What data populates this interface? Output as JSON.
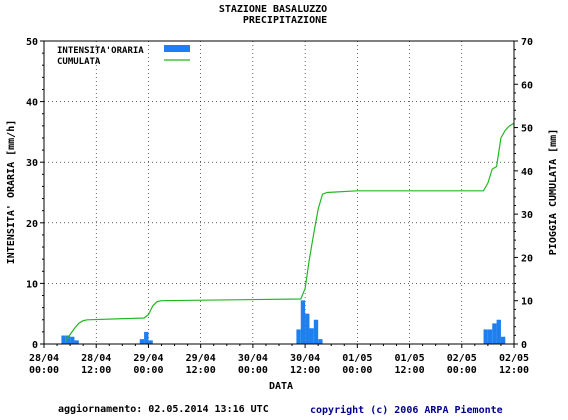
{
  "chart_data": {
    "type": "bar",
    "title": "STAZIONE BASALUZZO",
    "subtitle": "PRECIPITAZIONE",
    "xlabel": "DATA",
    "ylabel_left": "INTENSITA' ORARIA [mm/h]",
    "ylabel_right": "PIOGGIA CUMULATA [mm]",
    "ylim_left": [
      0,
      50
    ],
    "ylim_right": [
      0,
      70
    ],
    "yticks_left": [
      "0",
      "10",
      "20",
      "30",
      "40",
      "50"
    ],
    "yticks_right": [
      "0",
      "10",
      "20",
      "30",
      "40",
      "50",
      "60",
      "70"
    ],
    "x_range_hours": [
      0,
      108
    ],
    "x_ticks": [
      {
        "date": "28/04",
        "time": "00:00"
      },
      {
        "date": "28/04",
        "time": "12:00"
      },
      {
        "date": "29/04",
        "time": "00:00"
      },
      {
        "date": "29/04",
        "time": "12:00"
      },
      {
        "date": "30/04",
        "time": "00:00"
      },
      {
        "date": "30/04",
        "time": "12:00"
      },
      {
        "date": "01/05",
        "time": "00:00"
      },
      {
        "date": "01/05",
        "time": "12:00"
      },
      {
        "date": "02/05",
        "time": "00:00"
      },
      {
        "date": "02/05",
        "time": "12:00"
      }
    ],
    "grid": true,
    "legend_position": "top-left",
    "series": [
      {
        "name": "INTENSITA'ORARIA",
        "type": "bar",
        "axis": "left",
        "color": "#1e7ff0",
        "hours": [
          5,
          6,
          7,
          8,
          23,
          24,
          25,
          59,
          60,
          61,
          62,
          63,
          64,
          102,
          103,
          104,
          105,
          106
        ],
        "values": [
          1.4,
          1.4,
          1.2,
          0.6,
          0.8,
          2.0,
          0.6,
          2.4,
          7.2,
          5.0,
          2.6,
          4.0,
          0.8,
          2.4,
          2.4,
          3.4,
          4.0,
          1.2
        ]
      },
      {
        "name": "CUMULATA",
        "type": "line",
        "axis": "right",
        "color": "#22b822",
        "hours": [
          5,
          6,
          7,
          8,
          9,
          10,
          23,
          24,
          25,
          26,
          27,
          59,
          60,
          61,
          62,
          63,
          64,
          65,
          72,
          101,
          102,
          103,
          104,
          105,
          106,
          107,
          108
        ],
        "values": [
          0.8,
          2.2,
          3.6,
          4.8,
          5.4,
          5.6,
          6.0,
          6.8,
          8.8,
          9.8,
          10.0,
          10.4,
          12.8,
          19.8,
          25.6,
          31.2,
          34.6,
          35.0,
          35.4,
          35.4,
          37.2,
          40.4,
          41.0,
          47.6,
          49.4,
          50.4,
          51.0
        ]
      }
    ]
  },
  "footer": {
    "update": "aggiornamento: 02.05.2014 13:16 UTC",
    "copyright": "copyright (c) 2006 ARPA Piemonte"
  }
}
